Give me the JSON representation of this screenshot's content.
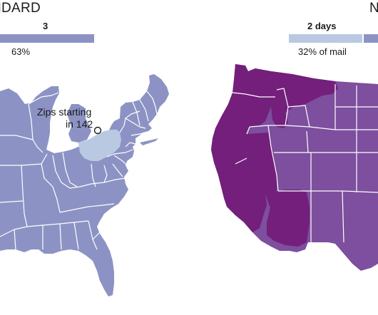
{
  "panels": {
    "left": {
      "title": "NDARD",
      "legend": {
        "category": "3",
        "share": "63%",
        "color": "#8c93c4"
      },
      "annotation": {
        "line1": "Zips starting",
        "line2": "in 142"
      },
      "colors": {
        "three_days": "#8c93c4",
        "two_days": "#b9c9e2",
        "border": "#ffffff"
      }
    },
    "right": {
      "title": "N",
      "legend": {
        "category": "2 days",
        "share": "32% of mail",
        "color": "#b9c9e2",
        "next_color": "#8c93c4"
      },
      "colors": {
        "one_day": "#731f7b",
        "two_days": "#7d4f9e",
        "border": "#ffffff"
      }
    }
  }
}
